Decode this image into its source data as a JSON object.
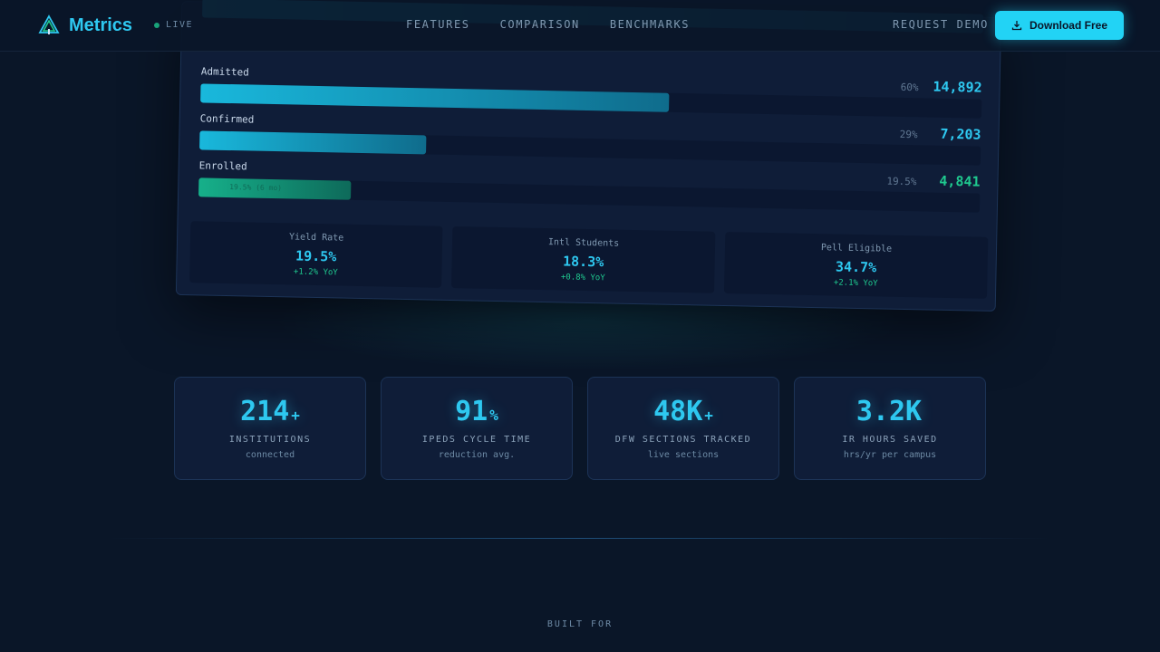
{
  "brand": {
    "name": "Metrics",
    "live_label": "LIVE"
  },
  "nav": {
    "links": [
      "FEATURES",
      "COMPARISON",
      "BENCHMARKS"
    ],
    "request_demo": "REQUEST DEMO",
    "download_label": "Download Free"
  },
  "funnel": {
    "rows": [
      {
        "label": "Admitted",
        "pct": "60%",
        "value": "14,892",
        "fill": 0.6
      },
      {
        "label": "Confirmed",
        "pct": "29%",
        "value": "7,203",
        "fill": 0.29
      },
      {
        "label": "Enrolled",
        "pct": "19.5%",
        "value": "4,841",
        "fill": 0.195,
        "note": "19.5% (6 mo)"
      }
    ],
    "stats": [
      {
        "label": "Yield Rate",
        "value": "19.5%",
        "change": "+1.2% YoY"
      },
      {
        "label": "Intl Students",
        "value": "18.3%",
        "change": "+0.8% YoY"
      },
      {
        "label": "Pell Eligible",
        "value": "34.7%",
        "change": "+2.1% YoY"
      }
    ]
  },
  "metrics": [
    {
      "number": "214",
      "suffix": "+",
      "label": "INSTITUTIONS",
      "sub": "connected"
    },
    {
      "number": "91",
      "suffix": "%",
      "label": "IPEDS CYCLE TIME",
      "sub": "reduction avg."
    },
    {
      "number": "48K",
      "suffix": "+",
      "label": "DFW SECTIONS TRACKED",
      "sub": "live sections"
    },
    {
      "number": "3.2K",
      "suffix": "",
      "label": "IR HOURS SAVED",
      "sub": "hrs/yr per campus"
    }
  ],
  "footer": {
    "built_for": "BUILT FOR"
  },
  "colors": {
    "accent": "#22d3f5",
    "success": "#1fc98f",
    "background": "#0a1628"
  }
}
